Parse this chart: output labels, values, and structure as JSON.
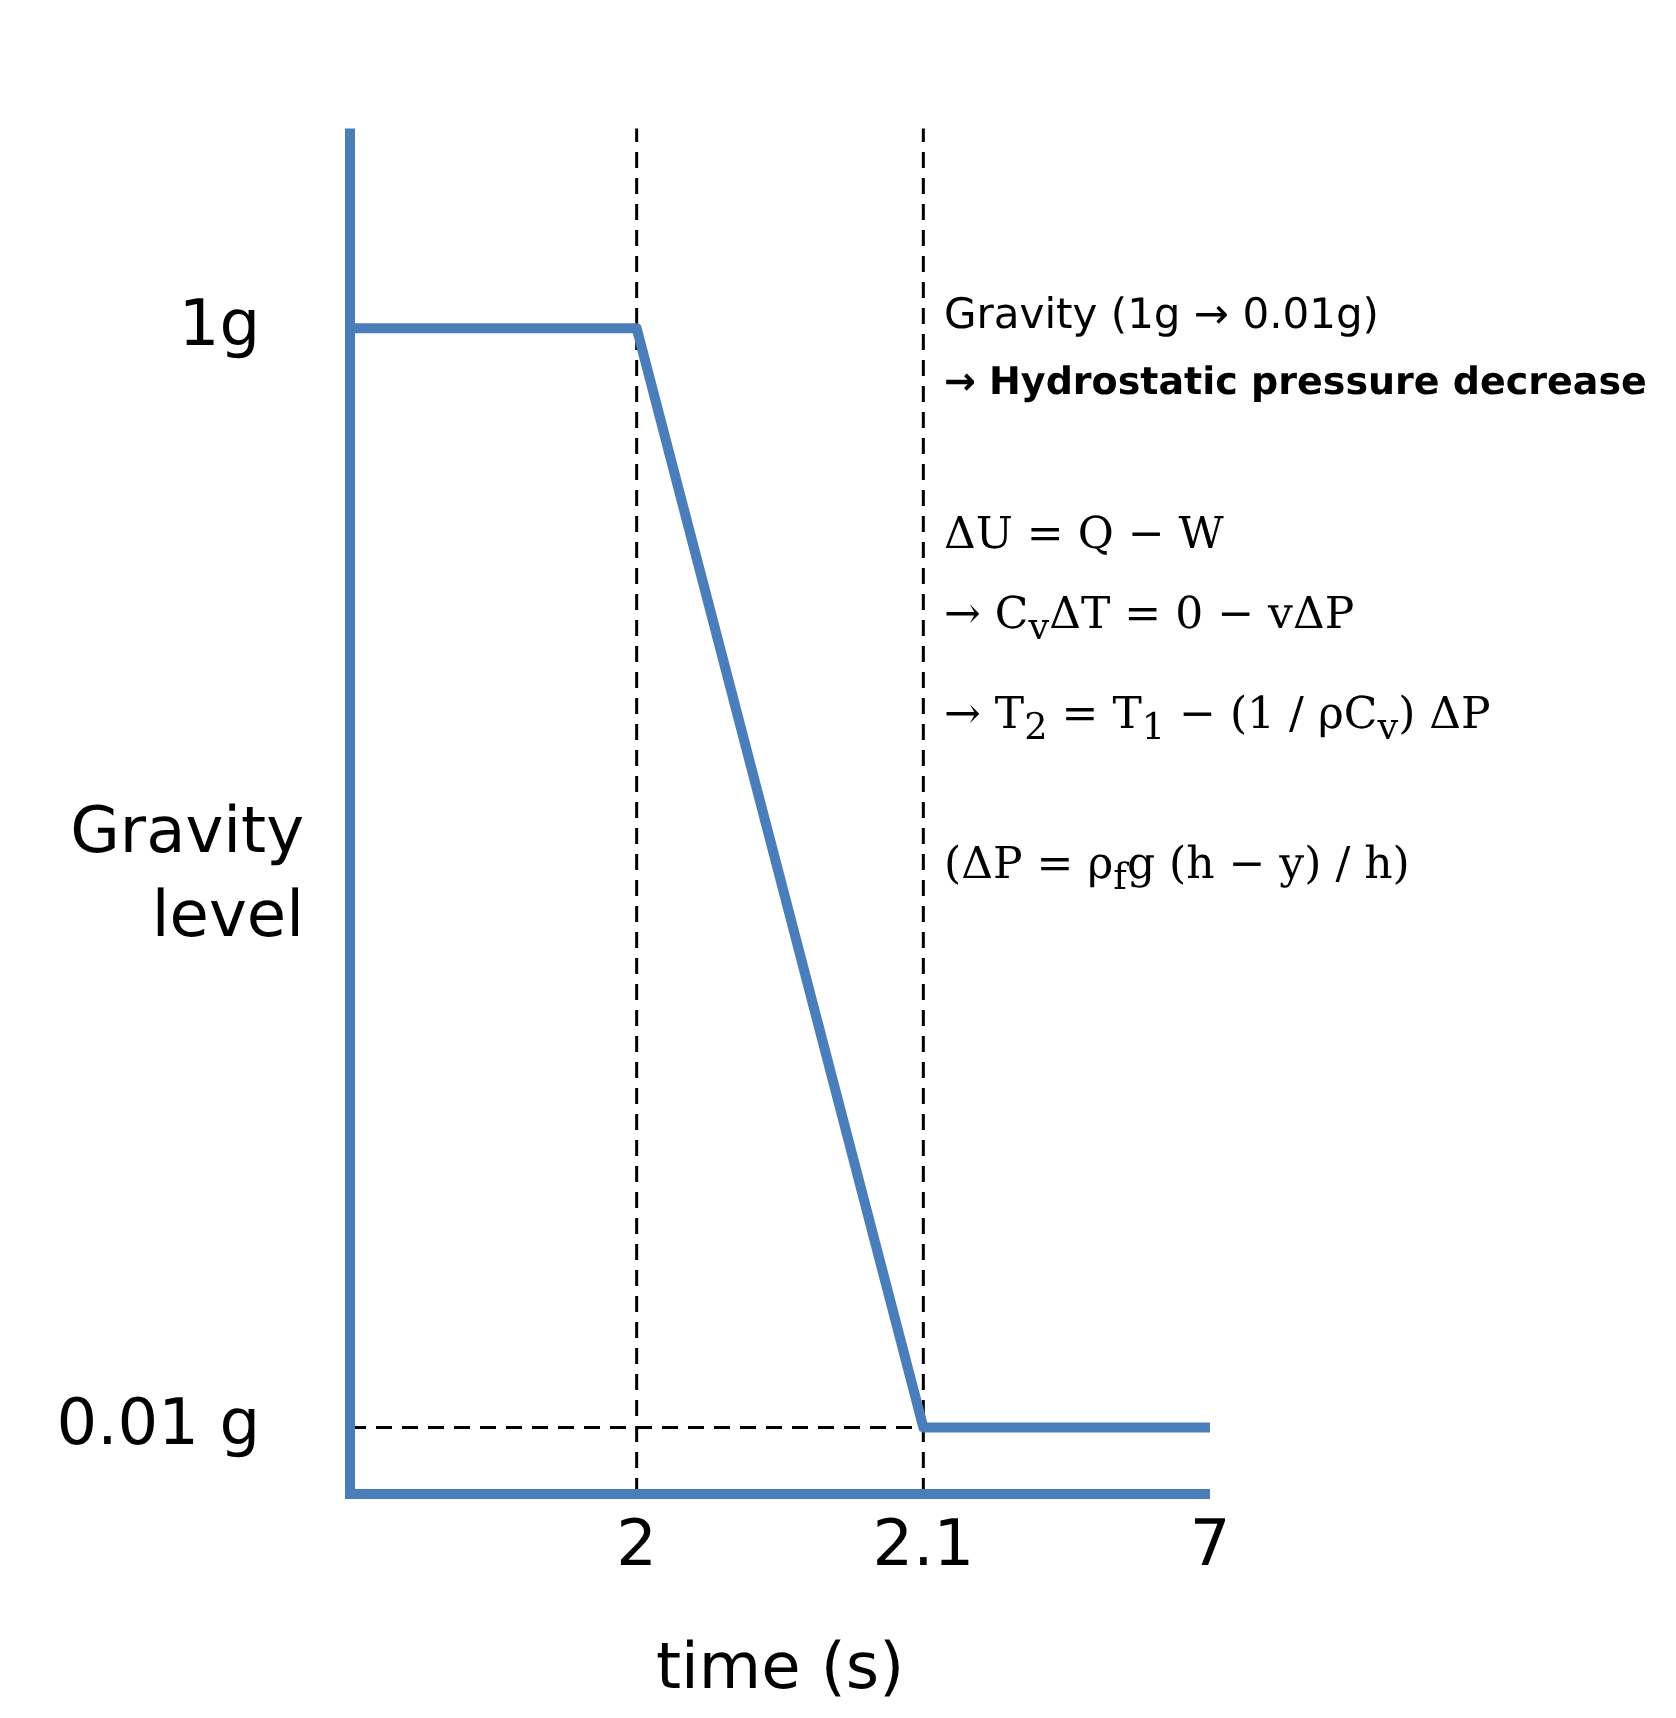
{
  "chart_data": {
    "type": "line",
    "xlabel": "time (s)",
    "ylabel": "Gravity level",
    "categories": [
      null,
      "2",
      "2.1",
      "7"
    ],
    "series": [
      {
        "color": "#4a7ebb",
        "values": [
          1,
          1,
          0.01,
          0.01
        ]
      }
    ],
    "ylim": [
      -0.05,
      1.18
    ],
    "yticks": [
      {
        "value": 1,
        "label": "1g"
      },
      {
        "value": 0.01,
        "label": "0.01 g"
      }
    ],
    "ref_lines": [
      {
        "axis": "x",
        "value": "2",
        "line_style": "dashed",
        "color": "#000000"
      },
      {
        "axis": "x",
        "value": "2.1",
        "line_style": "dashed",
        "color": "#000000"
      },
      {
        "axis": "y",
        "value": 0.01,
        "line_style": "dashed",
        "color": "#000000"
      }
    ],
    "annotations": [
      "Gravity (1g → 0.01g)",
      "→ Hydrostatic pressure decrease",
      "ΔU = Q − W",
      "→  C$_{v}$ΔT = 0 − vΔP",
      "→  T$_{2}$ = T$_{1}$ − (1 / ρC$_{v}$) ΔP",
      "(ΔP = ρ$_{f}$g (h − y) / h)"
    ],
    "grid": false,
    "legend": false,
    "marker": "none",
    "line_style": "solid"
  }
}
